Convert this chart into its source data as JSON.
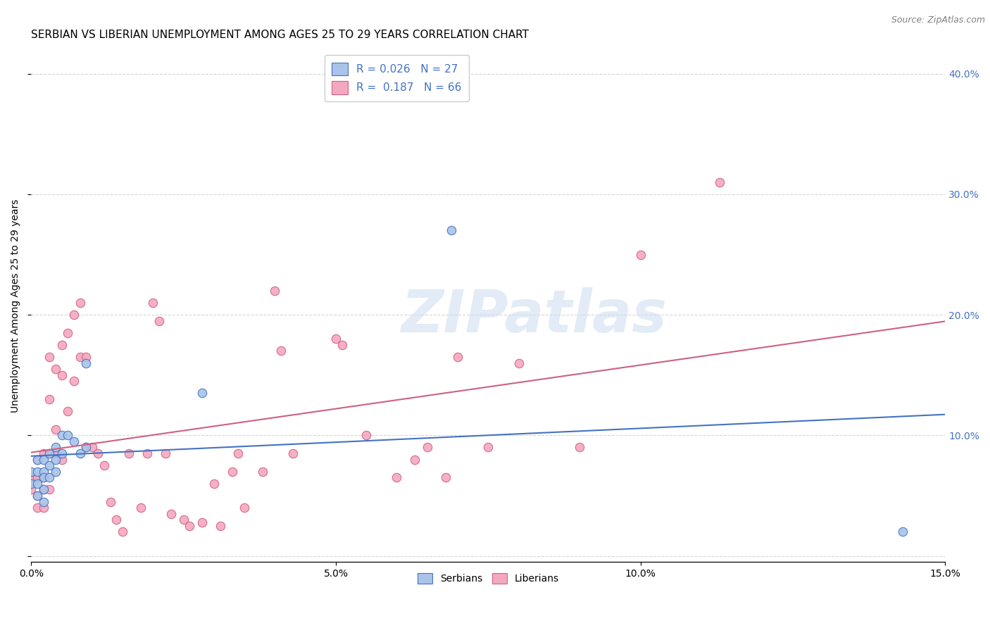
{
  "title": "SERBIAN VS LIBERIAN UNEMPLOYMENT AMONG AGES 25 TO 29 YEARS CORRELATION CHART",
  "source": "Source: ZipAtlas.com",
  "ylabel": "Unemployment Among Ages 25 to 29 years",
  "xlim": [
    0.0,
    0.15
  ],
  "ylim": [
    -0.005,
    0.42
  ],
  "xticks": [
    0.0,
    0.05,
    0.1,
    0.15
  ],
  "yticks_right": [
    0.1,
    0.2,
    0.3,
    0.4
  ],
  "serbian_color": "#a8c4e8",
  "liberian_color": "#f4a8c0",
  "serbian_R": 0.026,
  "serbian_N": 27,
  "liberian_R": 0.187,
  "liberian_N": 66,
  "serbian_line_color": "#4472c4",
  "liberian_line_color": "#d06080",
  "legend_text_color": "#4472c4",
  "right_tick_color": "#4472c4",
  "serbian_points_x": [
    0.0,
    0.0,
    0.001,
    0.001,
    0.001,
    0.001,
    0.002,
    0.002,
    0.002,
    0.002,
    0.002,
    0.003,
    0.003,
    0.003,
    0.004,
    0.004,
    0.004,
    0.005,
    0.005,
    0.006,
    0.007,
    0.008,
    0.009,
    0.009,
    0.028,
    0.069,
    0.143
  ],
  "serbian_points_y": [
    0.07,
    0.06,
    0.08,
    0.07,
    0.06,
    0.05,
    0.08,
    0.07,
    0.065,
    0.055,
    0.045,
    0.085,
    0.075,
    0.065,
    0.09,
    0.08,
    0.07,
    0.1,
    0.085,
    0.1,
    0.095,
    0.085,
    0.16,
    0.09,
    0.135,
    0.27,
    0.02
  ],
  "liberian_points_x": [
    0.0,
    0.0,
    0.001,
    0.001,
    0.001,
    0.001,
    0.002,
    0.002,
    0.002,
    0.002,
    0.003,
    0.003,
    0.003,
    0.003,
    0.004,
    0.004,
    0.004,
    0.005,
    0.005,
    0.005,
    0.006,
    0.006,
    0.007,
    0.007,
    0.008,
    0.008,
    0.009,
    0.009,
    0.01,
    0.011,
    0.012,
    0.013,
    0.014,
    0.015,
    0.016,
    0.018,
    0.019,
    0.02,
    0.021,
    0.022,
    0.023,
    0.025,
    0.026,
    0.028,
    0.03,
    0.031,
    0.033,
    0.034,
    0.035,
    0.038,
    0.04,
    0.041,
    0.043,
    0.05,
    0.051,
    0.055,
    0.06,
    0.063,
    0.065,
    0.068,
    0.07,
    0.075,
    0.08,
    0.09,
    0.1,
    0.113
  ],
  "liberian_points_y": [
    0.065,
    0.055,
    0.08,
    0.065,
    0.05,
    0.04,
    0.085,
    0.065,
    0.055,
    0.04,
    0.165,
    0.13,
    0.085,
    0.055,
    0.155,
    0.105,
    0.085,
    0.175,
    0.15,
    0.08,
    0.185,
    0.12,
    0.2,
    0.145,
    0.21,
    0.165,
    0.165,
    0.09,
    0.09,
    0.085,
    0.075,
    0.045,
    0.03,
    0.02,
    0.085,
    0.04,
    0.085,
    0.21,
    0.195,
    0.085,
    0.035,
    0.03,
    0.025,
    0.028,
    0.06,
    0.025,
    0.07,
    0.085,
    0.04,
    0.07,
    0.22,
    0.17,
    0.085,
    0.18,
    0.175,
    0.1,
    0.065,
    0.08,
    0.09,
    0.065,
    0.165,
    0.09,
    0.16,
    0.09,
    0.25,
    0.31
  ],
  "background_color": "#ffffff",
  "grid_color": "#cccccc",
  "watermark_text": "ZIPatlas",
  "marker_size": 80,
  "line_width": 1.5,
  "title_fontsize": 11,
  "axis_label_fontsize": 10,
  "tick_fontsize": 10,
  "legend_fontsize": 11,
  "source_fontsize": 9
}
